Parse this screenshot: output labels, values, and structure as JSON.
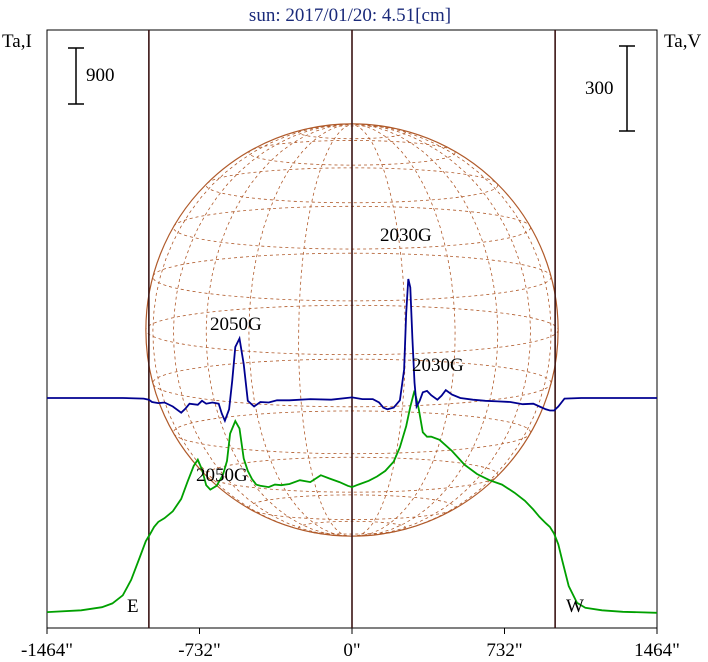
{
  "title": "sun: 2017/01/20: 4.51[cm]",
  "left_axis_label": "Ta,I",
  "right_axis_label": "Ta,V",
  "left_scale_label": "900",
  "right_scale_label": "300",
  "east_label": "E",
  "west_label": "W",
  "colors": {
    "stokes_i": "#00a000",
    "stokes_v": "#000090",
    "disk": "#b05a2a",
    "frame": "#000000",
    "limb_lines": "#3a1414",
    "text_title": "#1a2a7a"
  },
  "chart_data": {
    "type": "line",
    "title": "sun: 2017/01/20: 4.51[cm]",
    "x_ticks": [
      {
        "value": -1464,
        "label": "-1464\""
      },
      {
        "value": -732,
        "label": "-732\""
      },
      {
        "value": 0,
        "label": "0\""
      },
      {
        "value": 732,
        "label": "732\""
      },
      {
        "value": 1464,
        "label": "1464\""
      }
    ],
    "xlim": [
      -1464,
      1464
    ],
    "limb_x": [
      -975,
      975
    ],
    "series": [
      {
        "name": "I",
        "x": [
          -1464,
          -1300,
          -1200,
          -1150,
          -1100,
          -1060,
          -1020,
          -990,
          -970,
          -950,
          -930,
          -900,
          -860,
          -820,
          -790,
          -760,
          -740,
          -720,
          -700,
          -680,
          -650,
          -620,
          -600,
          -585,
          -560,
          -540,
          -520,
          -500,
          -480,
          -460,
          -440,
          -400,
          -370,
          -340,
          -300,
          -250,
          -200,
          -150,
          -110,
          -60,
          -20,
          0,
          30,
          80,
          120,
          160,
          200,
          230,
          260,
          280,
          300,
          320,
          340,
          360,
          380,
          420,
          480,
          540,
          600,
          660,
          720,
          780,
          830,
          870,
          900,
          930,
          950,
          970,
          990,
          1010,
          1040,
          1080,
          1120,
          1200,
          1300,
          1464
        ],
        "values": [
          30,
          60,
          110,
          170,
          300,
          550,
          900,
          1170,
          1280,
          1400,
          1480,
          1540,
          1650,
          1850,
          2120,
          2380,
          2480,
          2320,
          2070,
          2000,
          2060,
          2230,
          2460,
          2900,
          3100,
          2980,
          2500,
          2300,
          2170,
          2080,
          2060,
          2040,
          2080,
          2070,
          2090,
          2150,
          2120,
          2230,
          2180,
          2120,
          2060,
          2040,
          2080,
          2140,
          2210,
          2300,
          2450,
          2680,
          3020,
          3330,
          3590,
          3300,
          2920,
          2850,
          2850,
          2800,
          2620,
          2400,
          2250,
          2150,
          2080,
          1950,
          1820,
          1680,
          1560,
          1460,
          1400,
          1290,
          1120,
          850,
          450,
          180,
          100,
          60,
          35,
          20
        ]
      },
      {
        "name": "V",
        "x": [
          -1464,
          -1100,
          -1000,
          -975,
          -960,
          -930,
          -900,
          -860,
          -820,
          -800,
          -780,
          -740,
          -720,
          -700,
          -670,
          -640,
          -625,
          -610,
          -590,
          -575,
          -560,
          -540,
          -520,
          -500,
          -470,
          -440,
          -400,
          -360,
          -300,
          -200,
          -100,
          0,
          50,
          100,
          130,
          150,
          170,
          200,
          230,
          250,
          260,
          270,
          280,
          290,
          300,
          310,
          325,
          340,
          360,
          380,
          410,
          430,
          450,
          480,
          520,
          580,
          640,
          700,
          760,
          820,
          870,
          900,
          930,
          950,
          970,
          990,
          1020,
          1100,
          1464
        ],
        "values": [
          0,
          0,
          -2,
          -6,
          -14,
          -18,
          -16,
          -30,
          -52,
          -38,
          -20,
          -24,
          -10,
          -20,
          -16,
          -20,
          -55,
          -80,
          -40,
          60,
          180,
          210,
          120,
          -10,
          -30,
          -14,
          -16,
          -8,
          -8,
          -4,
          -6,
          2,
          -4,
          -4,
          -16,
          -34,
          -40,
          -34,
          -8,
          100,
          300,
          420,
          390,
          210,
          55,
          -30,
          -10,
          20,
          25,
          10,
          -6,
          8,
          28,
          12,
          0,
          -6,
          -10,
          -12,
          -14,
          -22,
          -20,
          -30,
          -40,
          -44,
          -44,
          -30,
          -2,
          0,
          0
        ]
      }
    ],
    "annotations": [
      "2050G",
      "2050G",
      "2030G",
      "2030G"
    ]
  }
}
